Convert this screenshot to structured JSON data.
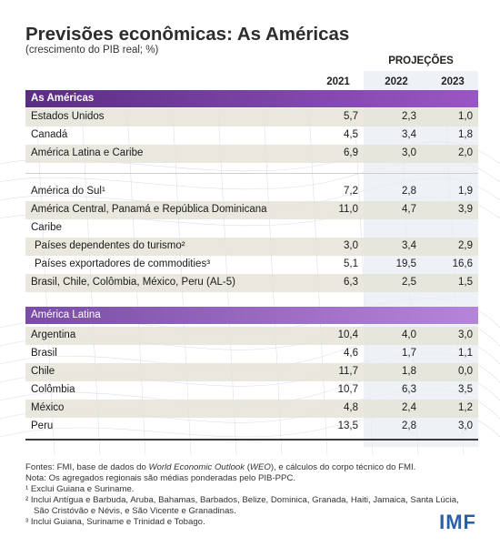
{
  "header": {
    "title": "Previsões econômicas: As Américas",
    "subtitle": "(crescimento do PIB real; %)",
    "projections_label": "PROJEÇÕES",
    "years": [
      "2021",
      "2022",
      "2023"
    ]
  },
  "sections": [
    {
      "title": "As Américas",
      "rows": [
        {
          "label": "Estados Unidos",
          "values": [
            "5,7",
            "2,3",
            "1,0"
          ],
          "shaded": true
        },
        {
          "label": "Canadá",
          "values": [
            "4,5",
            "3,4",
            "1,8"
          ],
          "shaded": false
        },
        {
          "label": "América Latina e Caribe",
          "values": [
            "6,9",
            "3,0",
            "2,0"
          ],
          "shaded": true
        },
        {
          "label": "América do Sul¹",
          "values": [
            "7,2",
            "2,8",
            "1,9"
          ],
          "shaded": false
        },
        {
          "label": "América Central, Panamá e República Dominicana",
          "values": [
            "11,0",
            "4,7",
            "3,9"
          ],
          "shaded": true
        },
        {
          "label": "Caribe",
          "values": [
            "",
            "",
            ""
          ],
          "shaded": false
        },
        {
          "label": "Países dependentes do turismo²",
          "values": [
            "3,0",
            "3,4",
            "2,9"
          ],
          "shaded": true,
          "indent": true
        },
        {
          "label": "Países exportadores de commodities³",
          "values": [
            "5,1",
            "19,5",
            "16,6"
          ],
          "shaded": false,
          "indent": true
        },
        {
          "label": "Brasil, Chile, Colômbia, México, Peru (AL-5)",
          "values": [
            "6,3",
            "2,5",
            "1,5"
          ],
          "shaded": true
        }
      ]
    },
    {
      "title": "América Latina",
      "rows": [
        {
          "label": "Argentina",
          "values": [
            "10,4",
            "4,0",
            "3,0"
          ],
          "shaded": true
        },
        {
          "label": "Brasil",
          "values": [
            "4,6",
            "1,7",
            "1,1"
          ],
          "shaded": false
        },
        {
          "label": "Chile",
          "values": [
            "11,7",
            "1,8",
            "0,0"
          ],
          "shaded": true
        },
        {
          "label": "Colômbia",
          "values": [
            "10,7",
            "6,3",
            "3,5"
          ],
          "shaded": false
        },
        {
          "label": "México",
          "values": [
            "4,8",
            "2,4",
            "1,2"
          ],
          "shaded": true
        },
        {
          "label": "Peru",
          "values": [
            "13,5",
            "2,8",
            "3,0"
          ],
          "shaded": false
        }
      ]
    }
  ],
  "notes": {
    "source_prefix": "Fontes: FMI, base de dados do ",
    "source_weo": "World Economic Outlook",
    "source_mid": " (",
    "source_weo_abbr": "WEO",
    "source_suffix": "), e cálculos do corpo técnico do FMI.",
    "note": "Nota: Os agregados regionais são médias ponderadas pelo PIB-PPC.",
    "fn1": "¹ Exclui Guiana e Suriname.",
    "fn2a": "² Inclui Antígua e Barbuda, Aruba, Bahamas, Barbados, Belize, Dominica, Granada, Haiti, Jamaica, Santa Lúcia,",
    "fn2b": "São Cristóvão e Névis, e São Vicente e Granadinas.",
    "fn3": "³ Inclui Guiana, Suriname e Trinidad e Tobago."
  },
  "logo": "IMF"
}
